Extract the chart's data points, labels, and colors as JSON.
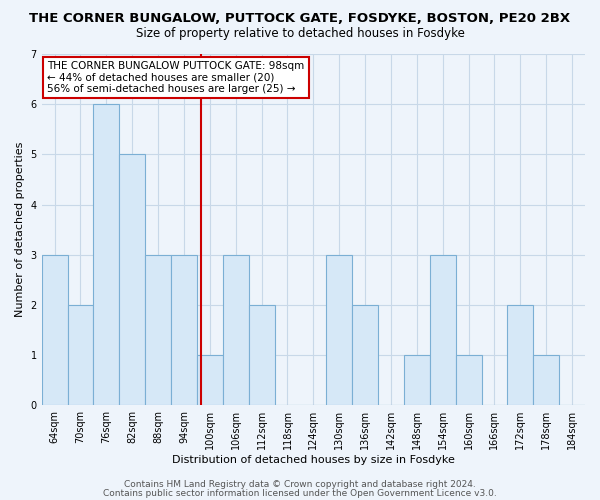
{
  "title": "THE CORNER BUNGALOW, PUTTOCK GATE, FOSDYKE, BOSTON, PE20 2BX",
  "subtitle": "Size of property relative to detached houses in Fosdyke",
  "xlabel": "Distribution of detached houses by size in Fosdyke",
  "ylabel": "Number of detached properties",
  "categories": [
    "64sqm",
    "70sqm",
    "76sqm",
    "82sqm",
    "88sqm",
    "94sqm",
    "100sqm",
    "106sqm",
    "112sqm",
    "118sqm",
    "124sqm",
    "130sqm",
    "136sqm",
    "142sqm",
    "148sqm",
    "154sqm",
    "160sqm",
    "166sqm",
    "172sqm",
    "178sqm",
    "184sqm"
  ],
  "values": [
    3,
    2,
    6,
    5,
    3,
    3,
    1,
    3,
    2,
    0,
    0,
    3,
    2,
    0,
    1,
    3,
    1,
    0,
    2,
    1,
    0
  ],
  "bar_color": "#d6e8f7",
  "bar_edge_color": "#7bafd4",
  "red_line_x": 6.0,
  "ylim": [
    0,
    7
  ],
  "yticks": [
    0,
    1,
    2,
    3,
    4,
    5,
    6,
    7
  ],
  "bg_color": "#eef4fb",
  "grid_color": "#c8d8e8",
  "annotation_title": "THE CORNER BUNGALOW PUTTOCK GATE: 98sqm",
  "annotation_line1": "← 44% of detached houses are smaller (20)",
  "annotation_line2": "56% of semi-detached houses are larger (25) →",
  "annotation_box_color": "#ffffff",
  "annotation_box_edge": "#cc0000",
  "red_line_color": "#cc0000",
  "footer1": "Contains HM Land Registry data © Crown copyright and database right 2024.",
  "footer2": "Contains public sector information licensed under the Open Government Licence v3.0.",
  "title_fontsize": 9.5,
  "subtitle_fontsize": 8.5,
  "axis_label_fontsize": 8,
  "tick_fontsize": 7,
  "annotation_fontsize": 7.5,
  "footer_fontsize": 6.5
}
